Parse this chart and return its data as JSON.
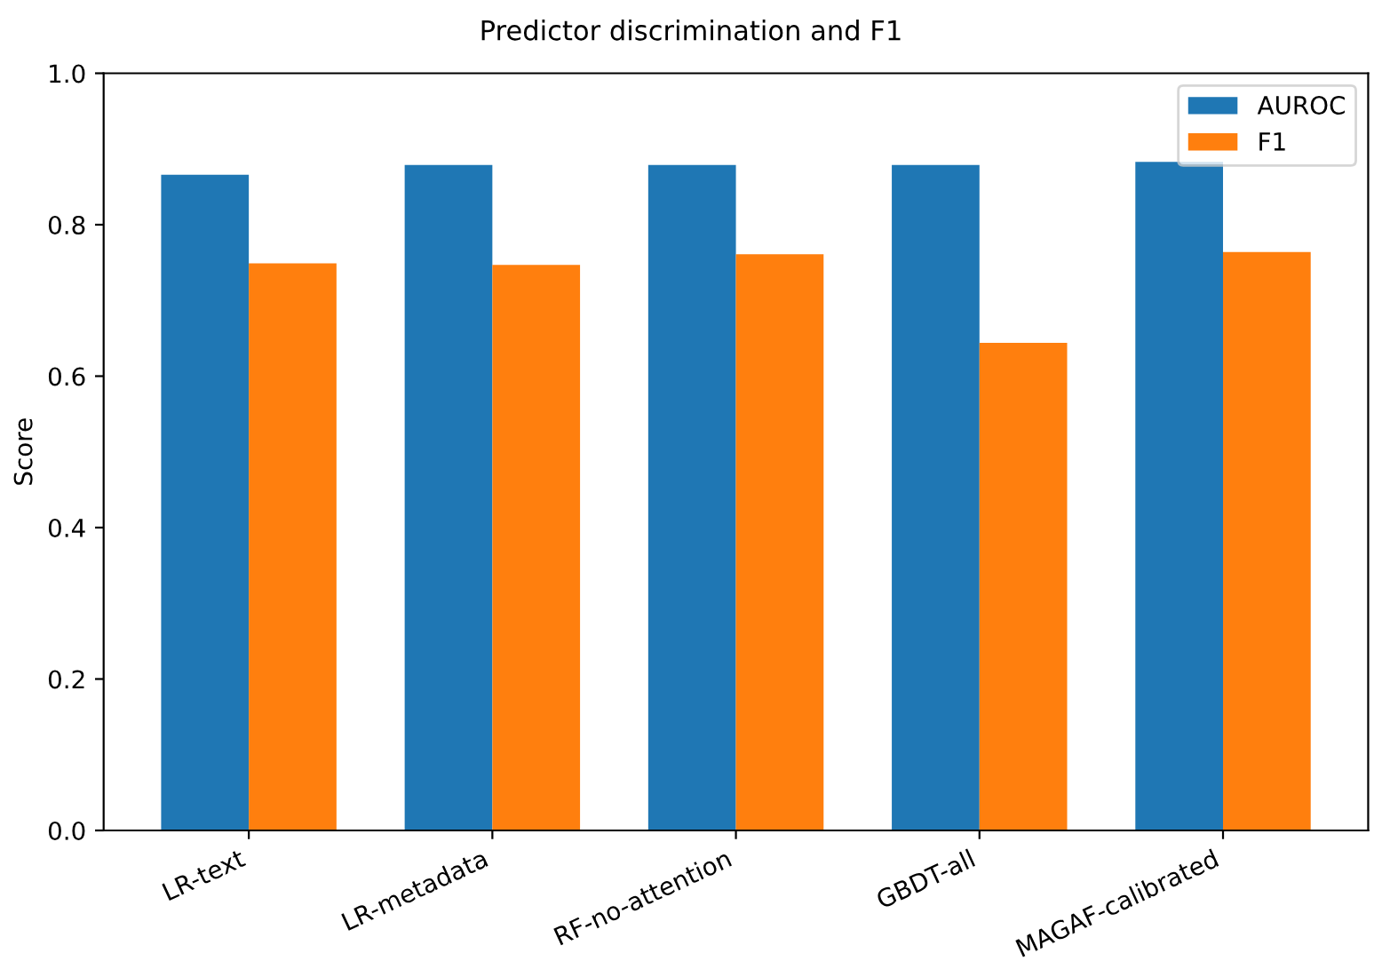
{
  "chart_data": {
    "type": "bar",
    "title": "Predictor discrimination and F1",
    "ylabel": "Score",
    "categories": [
      "LR-text",
      "LR-metadata",
      "RF-no-attention",
      "GBDT-all",
      "MAGAF-calibrated"
    ],
    "series": [
      {
        "name": "AUROC",
        "color": "#1f77b4",
        "values": [
          0.866,
          0.879,
          0.879,
          0.879,
          0.883
        ]
      },
      {
        "name": "F1",
        "color": "#ff7f0e",
        "values": [
          0.749,
          0.747,
          0.761,
          0.644,
          0.764
        ]
      }
    ],
    "ylim": [
      0,
      1.0
    ],
    "yticks": [
      {
        "value": 0,
        "label": "0.0"
      },
      0.2,
      0.4,
      0.6,
      0.8,
      {
        "value": 1.0,
        "label": "1.0"
      }
    ],
    "legend": "top right",
    "grid": false
  }
}
